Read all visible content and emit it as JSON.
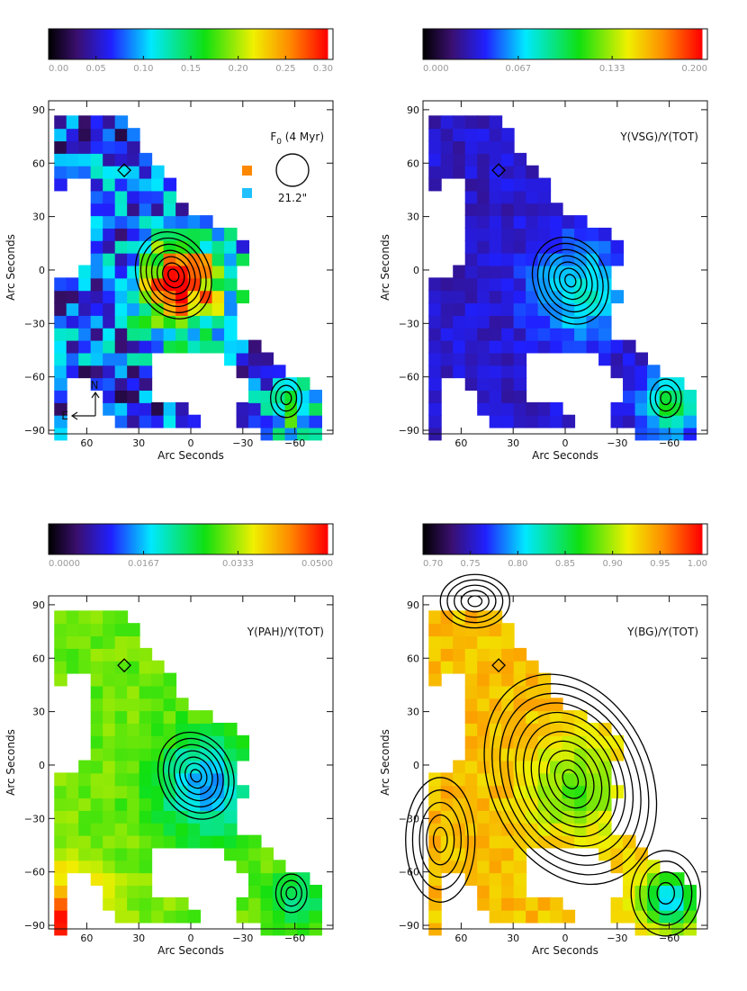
{
  "chart_data": [
    {
      "type": "heatmap",
      "title": "F",
      "title_sub": "0",
      "title_suffix": " (4 Myr)",
      "beam_label": "21.2\"",
      "compass": {
        "north": "N",
        "east": "E"
      },
      "xlabel": "Arc Seconds",
      "ylabel": "Arc Seconds",
      "xlim": [
        82,
        -82
      ],
      "ylim": [
        -92,
        95
      ],
      "xticks": [
        "60",
        "30",
        "0",
        "−30",
        "−60"
      ],
      "xtick_values": [
        60,
        30,
        0,
        -30,
        -60
      ],
      "yticks": [
        "90",
        "60",
        "30",
        "0",
        "−30",
        "−60",
        "−90"
      ],
      "ytick_values": [
        90,
        60,
        30,
        0,
        -30,
        -60,
        -90
      ],
      "colorbar": {
        "min": 0.0,
        "max": 0.3,
        "ticks": [
          "0.00",
          "0.05",
          "0.10",
          "0.15",
          "0.20",
          "0.25",
          "0.30"
        ],
        "tick_values": [
          0.0,
          0.05,
          0.1,
          0.15,
          0.2,
          0.25,
          0.3
        ]
      },
      "map": {
        "peak": [
          8,
          -5
        ],
        "peak_value": 0.29,
        "base_value": 0.07,
        "secondary": [
          -55,
          -72
        ],
        "secondary_value": 0.16
      }
    },
    {
      "type": "heatmap",
      "title": "Y(VSG)/Y(TOT)",
      "xlabel": "Arc Seconds",
      "ylabel": "Arc Seconds",
      "xlim": [
        82,
        -82
      ],
      "ylim": [
        -92,
        95
      ],
      "xticks": [
        "60",
        "30",
        "0",
        "−30",
        "−60"
      ],
      "xtick_values": [
        60,
        30,
        0,
        -30,
        -60
      ],
      "yticks": [
        "90",
        "60",
        "30",
        "0",
        "−30",
        "−60",
        "−90"
      ],
      "ytick_values": [
        90,
        60,
        30,
        0,
        -30,
        -60,
        -90
      ],
      "colorbar": {
        "min": 0.0,
        "max": 0.2,
        "ticks": [
          "0.000",
          "0.067",
          "0.133",
          "0.200"
        ],
        "tick_values": [
          0.0,
          0.067,
          0.133,
          0.2
        ]
      },
      "map": {
        "peak": [
          -5,
          -8
        ],
        "peak_value": 0.08,
        "base_value": 0.035,
        "secondary": [
          -58,
          -72
        ],
        "secondary_value": 0.11
      }
    },
    {
      "type": "heatmap",
      "title": "Y(PAH)/Y(TOT)",
      "xlabel": "Arc Seconds",
      "ylabel": "Arc Seconds",
      "xlim": [
        82,
        -82
      ],
      "ylim": [
        -92,
        95
      ],
      "xticks": [
        "60",
        "30",
        "0",
        "−30",
        "−60"
      ],
      "xtick_values": [
        60,
        30,
        0,
        -30,
        -60
      ],
      "yticks": [
        "90",
        "60",
        "30",
        "0",
        "−30",
        "−60",
        "−90"
      ],
      "ytick_values": [
        90,
        60,
        30,
        0,
        -30,
        -60,
        -90
      ],
      "colorbar": {
        "min": 0.0,
        "max": 0.05,
        "ticks": [
          "0.0000",
          "0.0167",
          "0.0333",
          "0.0500"
        ],
        "tick_values": [
          0.0,
          0.0167,
          0.0333,
          0.05
        ]
      },
      "map": {
        "peak": [
          -5,
          -8
        ],
        "peak_value": 0.015,
        "base_value": 0.031,
        "corner_value": 0.049,
        "secondary": [
          -58,
          -72
        ],
        "secondary_value": 0.022
      }
    },
    {
      "type": "heatmap",
      "title": "Y(BG)/Y(TOT)",
      "xlabel": "Arc Seconds",
      "ylabel": "Arc Seconds",
      "xlim": [
        82,
        -82
      ],
      "ylim": [
        -92,
        95
      ],
      "xticks": [
        "60",
        "30",
        "0",
        "−30",
        "−60"
      ],
      "xtick_values": [
        60,
        30,
        0,
        -30,
        -60
      ],
      "yticks": [
        "90",
        "60",
        "30",
        "0",
        "−30",
        "−60",
        "−90"
      ],
      "ytick_values": [
        90,
        60,
        30,
        0,
        -30,
        -60,
        -90
      ],
      "colorbar": {
        "min": 0.7,
        "max": 1.0,
        "ticks": [
          "0.70",
          "0.75",
          "0.80",
          "0.85",
          "0.90",
          "0.95",
          "1.00"
        ],
        "tick_values": [
          0.7,
          0.75,
          0.8,
          0.85,
          0.9,
          0.95,
          1.0
        ]
      },
      "map": {
        "peak": [
          -5,
          -10
        ],
        "peak_value": 0.88,
        "base_value": 0.935,
        "secondary": [
          -58,
          -72
        ],
        "secondary_value": 0.8
      }
    }
  ]
}
